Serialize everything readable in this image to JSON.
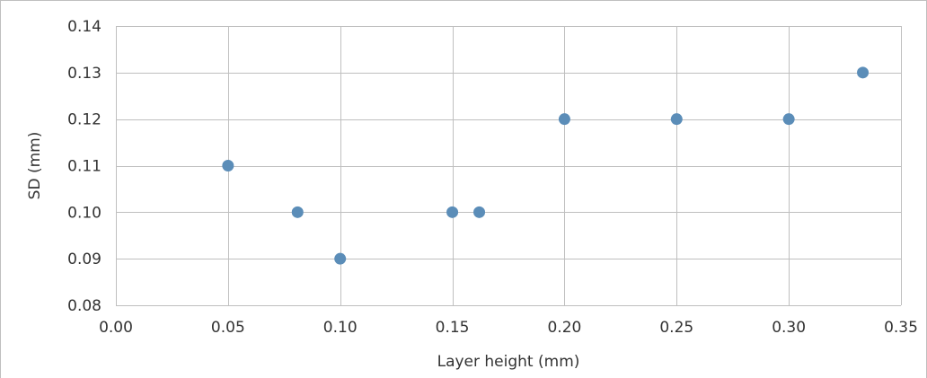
{
  "chart_data": {
    "type": "scatter",
    "title": "",
    "xlabel": "Layer height (mm)",
    "ylabel": "SD (mm)",
    "xlim": [
      0.0,
      0.35
    ],
    "ylim": [
      0.08,
      0.14
    ],
    "x_ticks": [
      "0.00",
      "0.05",
      "0.10",
      "0.15",
      "0.20",
      "0.25",
      "0.30",
      "0.35"
    ],
    "y_ticks": [
      "0.08",
      "0.09",
      "0.10",
      "0.11",
      "0.12",
      "0.13",
      "0.14"
    ],
    "grid": true,
    "marker_color": "#5b8db8",
    "points": [
      {
        "x": 0.05,
        "y": 0.11
      },
      {
        "x": 0.081,
        "y": 0.1
      },
      {
        "x": 0.1,
        "y": 0.09
      },
      {
        "x": 0.15,
        "y": 0.1
      },
      {
        "x": 0.162,
        "y": 0.1
      },
      {
        "x": 0.2,
        "y": 0.12
      },
      {
        "x": 0.25,
        "y": 0.12
      },
      {
        "x": 0.3,
        "y": 0.12
      },
      {
        "x": 0.333,
        "y": 0.13
      }
    ]
  }
}
